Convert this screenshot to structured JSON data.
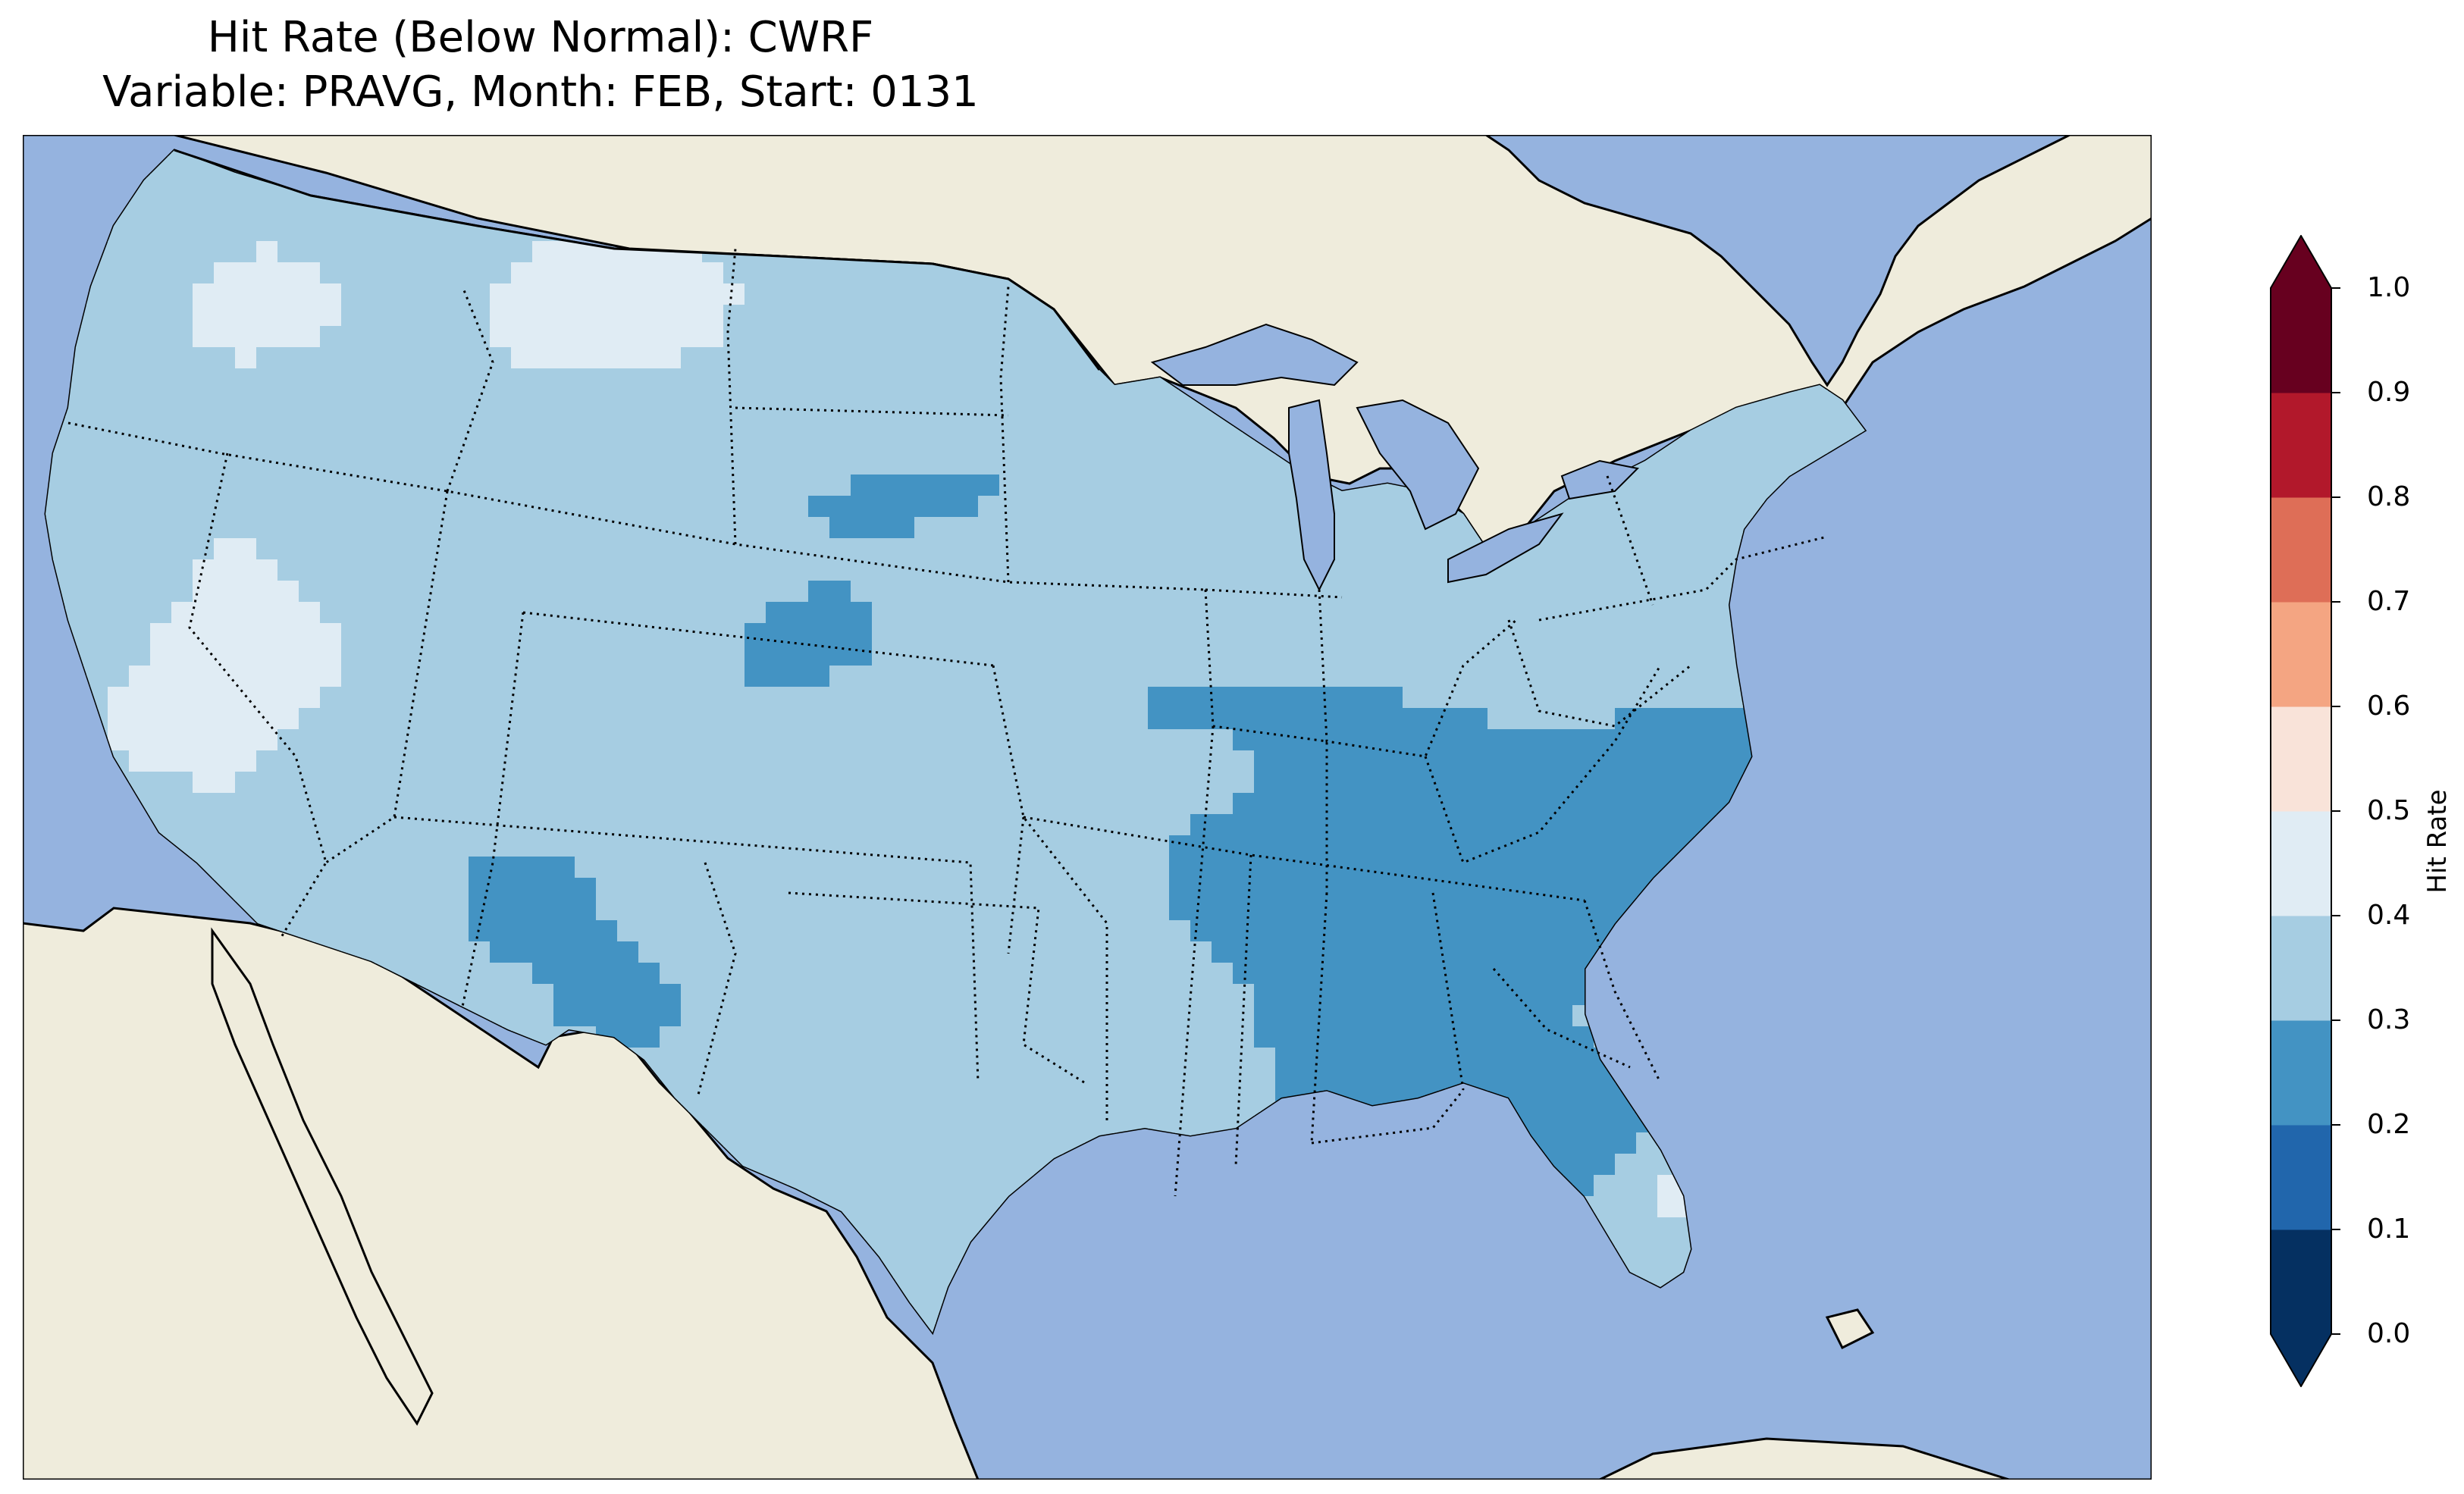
{
  "title": {
    "line1": "Hit Rate (Below Normal): CWRF",
    "line2": "Variable: PRAVG, Month: FEB, Start: 0131"
  },
  "colors": {
    "ocean": "#95b3df",
    "land": "#efecdc",
    "lakes": "#95b3df",
    "border": "#000000"
  },
  "colorbar": {
    "label": "Hit Rate",
    "ticks": [
      "0.0",
      "0.1",
      "0.2",
      "0.3",
      "0.4",
      "0.5",
      "0.6",
      "0.7",
      "0.8",
      "0.9",
      "1.0"
    ],
    "under_color": "#053061",
    "over_color": "#67001f",
    "bins": [
      {
        "range": [
          0.0,
          0.1
        ],
        "color": "#053061"
      },
      {
        "range": [
          0.1,
          0.2
        ],
        "color": "#2166ac"
      },
      {
        "range": [
          0.2,
          0.3
        ],
        "color": "#4393c3"
      },
      {
        "range": [
          0.3,
          0.4
        ],
        "color": "#a6cde2"
      },
      {
        "range": [
          0.4,
          0.5
        ],
        "color": "#e0ecf4"
      },
      {
        "range": [
          0.5,
          0.6
        ],
        "color": "#f9e3d9"
      },
      {
        "range": [
          0.6,
          0.7
        ],
        "color": "#f4a582"
      },
      {
        "range": [
          0.7,
          0.8
        ],
        "color": "#de6e57"
      },
      {
        "range": [
          0.8,
          0.9
        ],
        "color": "#b2182b"
      },
      {
        "range": [
          0.9,
          1.0
        ],
        "color": "#67001f"
      }
    ]
  },
  "map": {
    "projection": "Lambert conformal, CONUS",
    "features": [
      "coastlines",
      "state borders",
      "country borders",
      "lakes"
    ],
    "dominant_bins": [
      "0.3-0.4",
      "0.2-0.3",
      "0.4-0.5"
    ]
  }
}
